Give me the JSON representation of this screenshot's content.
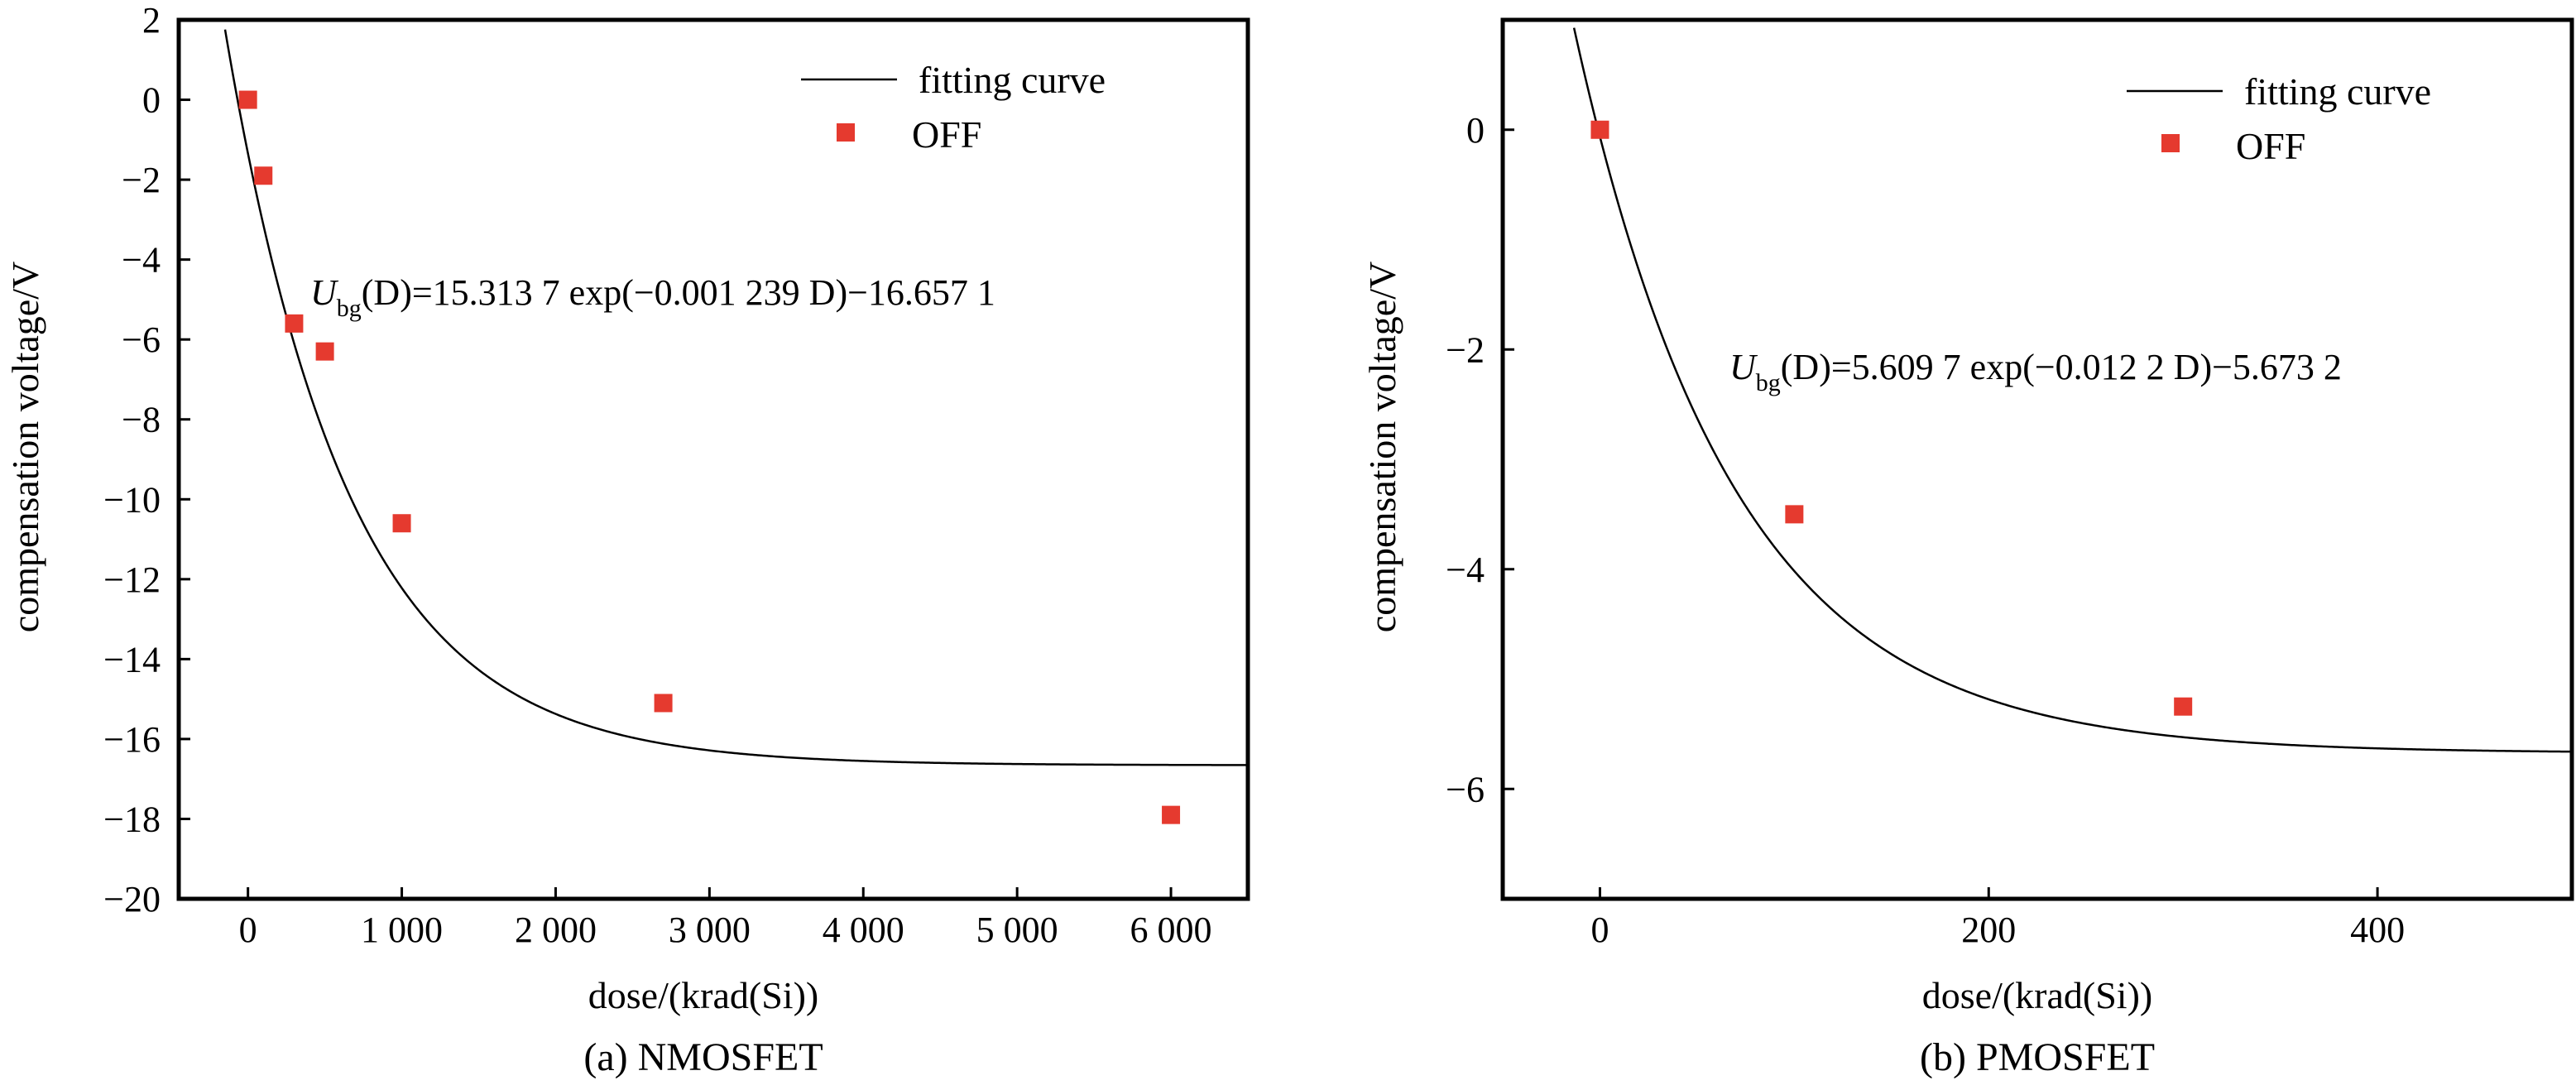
{
  "chart_data": [
    {
      "type": "scatter",
      "caption": "(a) NMOSFET",
      "xlabel": "dose/(krad(Si))",
      "ylabel": "compensation voltage/V",
      "xlim": [
        -450,
        6500
      ],
      "ylim": [
        -20,
        2
      ],
      "xticks": [
        0,
        1000,
        2000,
        3000,
        4000,
        5000,
        6000
      ],
      "xtick_labels": [
        "0",
        "1 000",
        "2 000",
        "3 000",
        "4 000",
        "5 000",
        "6 000"
      ],
      "yticks": [
        2,
        0,
        -2,
        -4,
        -6,
        -8,
        -10,
        -12,
        -14,
        -16,
        -18,
        -20
      ],
      "ytick_labels": [
        "2",
        "0",
        "−2",
        "−4",
        "−6",
        "−8",
        "−10",
        "−12",
        "−14",
        "−16",
        "−18",
        "−20"
      ],
      "legend": [
        "fitting curve",
        "OFF"
      ],
      "legend_position": "top-right",
      "marker_color": "#e53a2f",
      "line_color": "#000000",
      "series": [
        {
          "name": "OFF",
          "x": [
            0,
            100,
            300,
            500,
            1000,
            2700,
            6000
          ],
          "y": [
            0,
            -1.9,
            -5.6,
            -6.3,
            -10.6,
            -15.1,
            -17.9
          ]
        }
      ],
      "fit": {
        "a": 15.3137,
        "b": -0.001239,
        "c": -16.6571
      },
      "equation": {
        "var": "U",
        "sub": "bg",
        "text": "(D)=15.313 7 exp(−0.001 239 D)−16.657 1"
      }
    },
    {
      "type": "scatter",
      "caption": "(b) PMOSFET",
      "xlabel": "dose/(krad(Si))",
      "ylabel": "compensation voltage/V",
      "xlim": [
        -50,
        500
      ],
      "ylim": [
        -7,
        1
      ],
      "xticks": [
        0,
        200,
        400
      ],
      "xtick_labels": [
        "0",
        "200",
        "400"
      ],
      "yticks": [
        0,
        -2,
        -4,
        -6
      ],
      "ytick_labels": [
        "0",
        "−2",
        "−4",
        "−6"
      ],
      "legend": [
        "fitting curve",
        "OFF"
      ],
      "legend_position": "top-right",
      "marker_color": "#e53a2f",
      "line_color": "#000000",
      "series": [
        {
          "name": "OFF",
          "x": [
            0,
            100,
            300
          ],
          "y": [
            0,
            -3.5,
            -5.25
          ]
        }
      ],
      "fit": {
        "a": 5.6097,
        "b": -0.0122,
        "c": -5.6732
      },
      "equation": {
        "var": "U",
        "sub": "bg",
        "text": "(D)=5.609 7 exp(−0.012 2 D)−5.673 2"
      }
    }
  ]
}
